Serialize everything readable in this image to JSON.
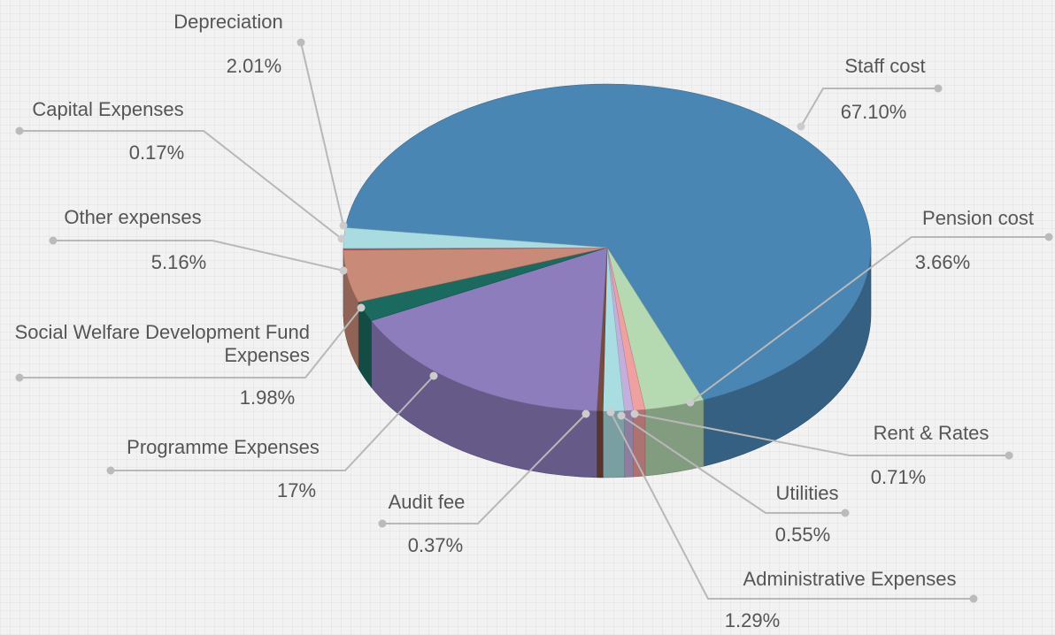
{
  "chart_data": {
    "type": "pie3d",
    "categories": [
      "Staff cost",
      "Pension cost",
      "Rent & Rates",
      "Utilities",
      "Administrative Expenses",
      "Audit fee",
      "Programme Expenses",
      "Social Welfare Development Fund Expenses",
      "Other expenses",
      "Capital Expenses",
      "Depreciation"
    ],
    "values": [
      67.1,
      3.66,
      0.71,
      0.55,
      1.29,
      0.37,
      17,
      1.98,
      5.16,
      0.17,
      2.01
    ],
    "value_labels": [
      "67.10%",
      "3.66%",
      "0.71%",
      "0.55%",
      "1.29%",
      "0.37%",
      "17%",
      "1.98%",
      "5.16%",
      "0.17%",
      "2.01%"
    ],
    "colors": [
      "#4a86b4",
      "#b5d9b0",
      "#f0a0a0",
      "#c4aedb",
      "#a8dde2",
      "#7a4a3a",
      "#8e7dbd",
      "#1a6a60",
      "#c98a78",
      "#c0505a",
      "#a8dce0"
    ]
  }
}
